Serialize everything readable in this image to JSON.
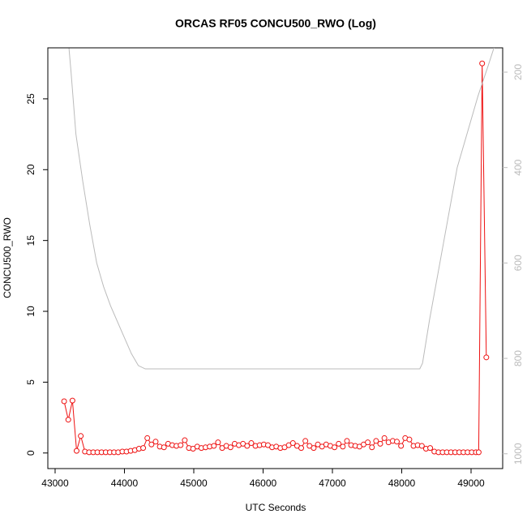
{
  "chart_data": {
    "type": "line",
    "title": "ORCAS RF05 CONCU500_RWO (Log)",
    "x_label": "UTC Seconds",
    "y_label": "CONCU500_RWO",
    "xlim": [
      42895,
      49456
    ],
    "xticks": [
      43000,
      44000,
      45000,
      46000,
      47000,
      48000,
      49000
    ],
    "ylim": [
      -1.1,
      28.6
    ],
    "yticks": [
      0,
      5,
      10,
      15,
      20,
      25
    ],
    "y2lim": [
      1031,
      149
    ],
    "y2ticks": [
      200,
      400,
      600,
      800,
      1000
    ],
    "y2color": "#bbbbbb",
    "series": [
      {
        "color": "#ee1111",
        "marker": "o",
        "x": [
          43130,
          43190,
          43250,
          43310,
          43370,
          43430,
          43490,
          43550,
          43610,
          43670,
          43730,
          43790,
          43850,
          43910,
          43970,
          44030,
          44090,
          44150,
          44210,
          44270,
          44330,
          44390,
          44450,
          44510,
          44570,
          44630,
          44690,
          44750,
          44810,
          44870,
          44930,
          44990,
          45050,
          45110,
          45170,
          45230,
          45290,
          45350,
          45410,
          45470,
          45530,
          45590,
          45650,
          45710,
          45770,
          45830,
          45890,
          45950,
          46010,
          46070,
          46130,
          46190,
          46250,
          46310,
          46370,
          46430,
          46490,
          46550,
          46610,
          46670,
          46730,
          46790,
          46850,
          46910,
          46970,
          47030,
          47090,
          47150,
          47210,
          47270,
          47330,
          47390,
          47450,
          47510,
          47570,
          47630,
          47690,
          47750,
          47810,
          47870,
          47930,
          47990,
          48050,
          48110,
          48170,
          48230,
          48290,
          48350,
          48410,
          48470,
          48530,
          48590,
          48650,
          48710,
          48770,
          48830,
          48890,
          48950,
          49010,
          49070,
          49110,
          49160,
          49220
        ],
        "values": [
          3.65,
          2.35,
          3.7,
          0.15,
          1.2,
          0.1,
          0.05,
          0.05,
          0.05,
          0.05,
          0.05,
          0.05,
          0.05,
          0.05,
          0.1,
          0.1,
          0.15,
          0.2,
          0.3,
          0.35,
          1.05,
          0.6,
          0.8,
          0.45,
          0.4,
          0.65,
          0.55,
          0.5,
          0.55,
          0.9,
          0.35,
          0.3,
          0.45,
          0.35,
          0.4,
          0.45,
          0.5,
          0.75,
          0.35,
          0.5,
          0.4,
          0.65,
          0.55,
          0.65,
          0.5,
          0.7,
          0.5,
          0.55,
          0.6,
          0.55,
          0.4,
          0.45,
          0.35,
          0.4,
          0.55,
          0.7,
          0.5,
          0.35,
          0.85,
          0.5,
          0.35,
          0.6,
          0.45,
          0.6,
          0.5,
          0.4,
          0.65,
          0.45,
          0.85,
          0.55,
          0.5,
          0.45,
          0.6,
          0.75,
          0.4,
          0.85,
          0.65,
          1.05,
          0.75,
          0.85,
          0.8,
          0.5,
          1.05,
          0.95,
          0.5,
          0.55,
          0.5,
          0.3,
          0.35,
          0.1,
          0.05,
          0.05,
          0.05,
          0.05,
          0.05,
          0.05,
          0.05,
          0.05,
          0.05,
          0.05,
          0.05,
          27.5,
          6.75
        ]
      },
      {
        "color": "#bbbbbb",
        "axis": "y2",
        "x": [
          43200,
          43230,
          43300,
          43400,
          43500,
          43600,
          43700,
          43800,
          43950,
          44100,
          44200,
          44300,
          44400,
          48260,
          48300,
          48400,
          48600,
          48800,
          49000,
          49100,
          49250,
          49350
        ],
        "values": [
          150,
          200,
          330,
          430,
          520,
          600,
          650,
          690,
          740,
          790,
          815,
          822,
          822,
          822,
          810,
          720,
          560,
          400,
          300,
          250,
          185,
          140
        ]
      }
    ]
  }
}
